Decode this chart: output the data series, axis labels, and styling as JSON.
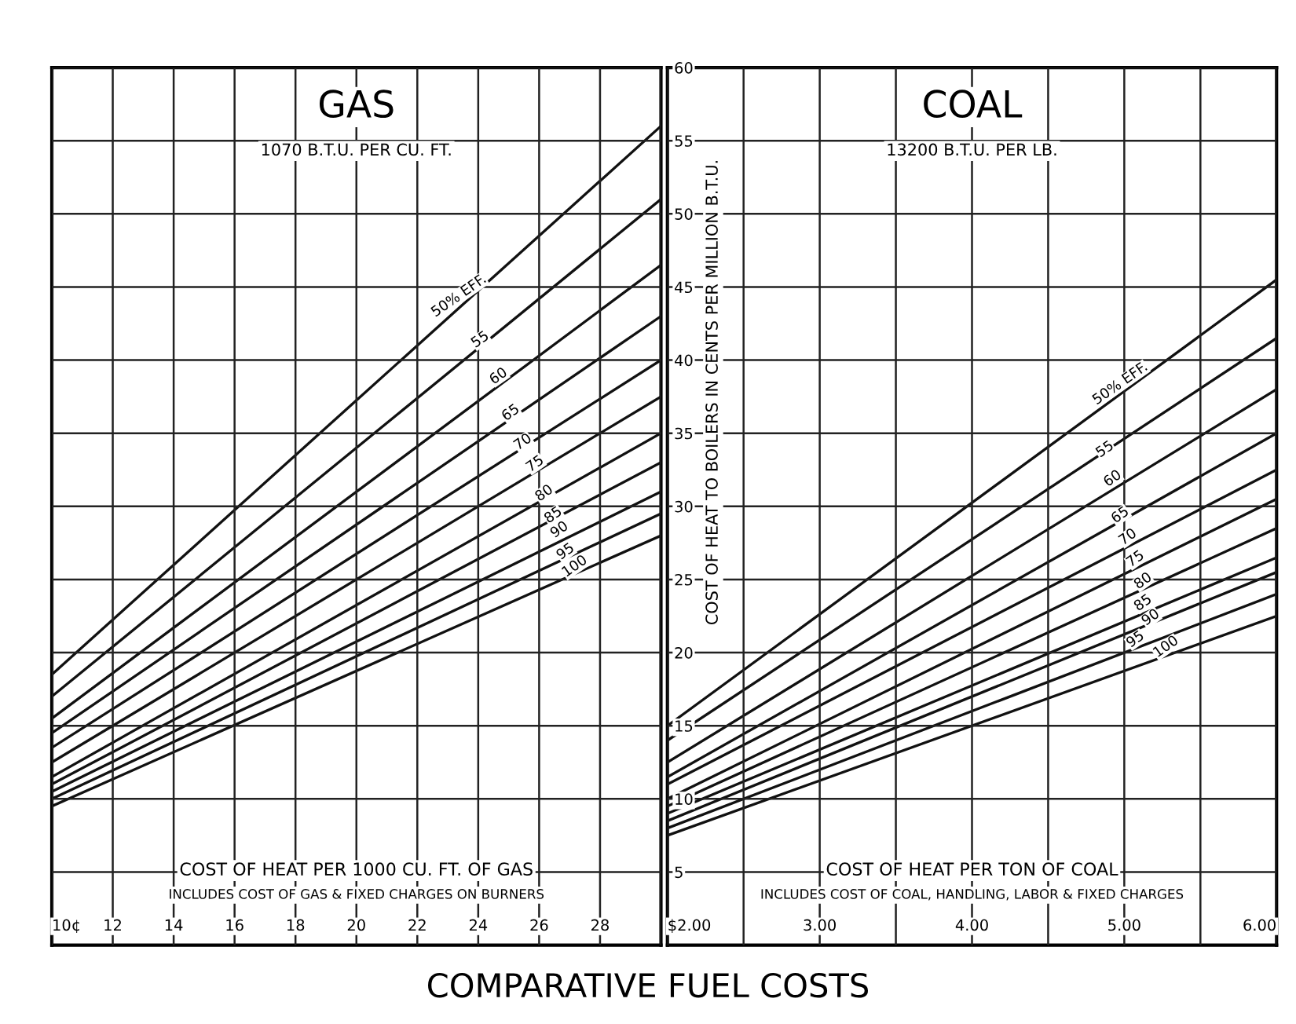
{
  "chart_data": [
    {
      "type": "line",
      "title": "GAS",
      "subtitle": "1070 B.T.U. PER CU. FT.",
      "xlabel": "COST OF HEAT PER 1000 CU. FT. OF GAS",
      "x": [
        10,
        30
      ],
      "xlim": [
        10,
        30
      ],
      "xticks": [
        {
          "value": 10,
          "label": "10¢"
        },
        12,
        14,
        16,
        18,
        20,
        22,
        24,
        26,
        28,
        {
          "value": 30,
          "label": null
        }
      ],
      "ylim": [
        0,
        60
      ],
      "yticks": [
        5,
        10,
        15,
        20,
        25,
        30,
        35,
        40,
        45,
        50,
        55,
        60
      ],
      "tick_labels": "x",
      "grid": true,
      "legend": false,
      "marker": "none",
      "line_style": "solid",
      "series": [
        {
          "color": "#111111",
          "values": [
            18.5,
            56
          ]
        },
        {
          "color": "#111111",
          "values": [
            17,
            51
          ]
        },
        {
          "color": "#111111",
          "values": [
            15.5,
            46.5
          ]
        },
        {
          "color": "#111111",
          "values": [
            14.5,
            43
          ]
        },
        {
          "color": "#111111",
          "values": [
            13.5,
            40
          ]
        },
        {
          "color": "#111111",
          "values": [
            12.5,
            37.5
          ]
        },
        {
          "color": "#111111",
          "values": [
            11.5,
            35
          ]
        },
        {
          "color": "#111111",
          "values": [
            11,
            33
          ]
        },
        {
          "color": "#111111",
          "values": [
            10.5,
            31
          ]
        },
        {
          "color": "#111111",
          "values": [
            10,
            29.5
          ]
        },
        {
          "color": "#111111",
          "values": [
            9.5,
            28
          ]
        }
      ],
      "annotations": [
        "INCLUDES COST OF GAS & FIXED CHARGES ON BURNERS",
        "COMPARATIVE FUEL COSTS",
        {
          "text": "50% EFF.",
          "x": 23.5,
          "y": 44
        },
        {
          "text": "55",
          "x": 24.2,
          "y": 41
        },
        {
          "text": "60",
          "x": 24.8,
          "y": 38.5
        },
        {
          "text": "65",
          "x": 25.2,
          "y": 36
        },
        {
          "text": "70",
          "x": 25.6,
          "y": 34
        },
        {
          "text": "75",
          "x": 26,
          "y": 32.5
        },
        {
          "text": "80",
          "x": 26.3,
          "y": 30.5
        },
        {
          "text": "85",
          "x": 26.6,
          "y": 29
        },
        {
          "text": "90",
          "x": 26.8,
          "y": 28
        },
        {
          "text": "95",
          "x": 27,
          "y": 26.5
        },
        {
          "text": "100",
          "x": 27.3,
          "y": 25.5
        }
      ]
    },
    {
      "type": "line",
      "title": "COAL",
      "subtitle": "13200 B.T.U. PER LB.",
      "xlabel": "COST OF HEAT PER TON OF COAL",
      "ylabel": "COST OF HEAT TO BOILERS IN CENTS PER MILLION B.T.U.",
      "x": [
        2,
        6
      ],
      "xlim": [
        2,
        6
      ],
      "xticks": [
        {
          "value": 2,
          "label": "$2.00"
        },
        {
          "value": 2.5,
          "label": null
        },
        {
          "value": 3,
          "label": "3.00"
        },
        {
          "value": 3.5,
          "label": null
        },
        {
          "value": 4,
          "label": "4.00"
        },
        {
          "value": 4.5,
          "label": null
        },
        {
          "value": 5,
          "label": "5.00"
        },
        {
          "value": 5.5,
          "label": null
        },
        {
          "value": 6,
          "label": "6.00"
        }
      ],
      "ylim": [
        0,
        60
      ],
      "yticks": [
        5,
        10,
        15,
        20,
        25,
        30,
        35,
        40,
        45,
        50,
        55,
        60
      ],
      "grid": true,
      "legend": false,
      "marker": "none",
      "line_style": "solid",
      "series": [
        {
          "color": "#111111",
          "values": [
            15,
            45.5
          ]
        },
        {
          "color": "#111111",
          "values": [
            14,
            41.5
          ]
        },
        {
          "color": "#111111",
          "values": [
            12.5,
            38
          ]
        },
        {
          "color": "#111111",
          "values": [
            11.5,
            35
          ]
        },
        {
          "color": "#111111",
          "values": [
            11,
            32.5
          ]
        },
        {
          "color": "#111111",
          "values": [
            10,
            30.5
          ]
        },
        {
          "color": "#111111",
          "values": [
            9.5,
            28.5
          ]
        },
        {
          "color": "#111111",
          "values": [
            9,
            26.5
          ]
        },
        {
          "color": "#111111",
          "values": [
            8.5,
            25.5
          ]
        },
        {
          "color": "#111111",
          "values": [
            8,
            24
          ]
        },
        {
          "color": "#111111",
          "values": [
            7.5,
            22.5
          ]
        }
      ],
      "annotations": [
        "INCLUDES COST OF COAL, HANDLING, LABOR & FIXED CHARGES",
        {
          "text": "50% EFF.",
          "x": 5.0,
          "y": 38
        },
        {
          "text": "55",
          "x": 4.9,
          "y": 33.5
        },
        {
          "text": "60",
          "x": 4.95,
          "y": 31.5
        },
        {
          "text": "65",
          "x": 5.0,
          "y": 29
        },
        {
          "text": "70",
          "x": 5.05,
          "y": 27.5
        },
        {
          "text": "75",
          "x": 5.1,
          "y": 26
        },
        {
          "text": "80",
          "x": 5.15,
          "y": 24.5
        },
        {
          "text": "85",
          "x": 5.15,
          "y": 23
        },
        {
          "text": "90",
          "x": 5.2,
          "y": 22
        },
        {
          "text": "95",
          "x": 5.1,
          "y": 20.5
        },
        {
          "text": "100",
          "x": 5.3,
          "y": 20
        }
      ]
    }
  ]
}
